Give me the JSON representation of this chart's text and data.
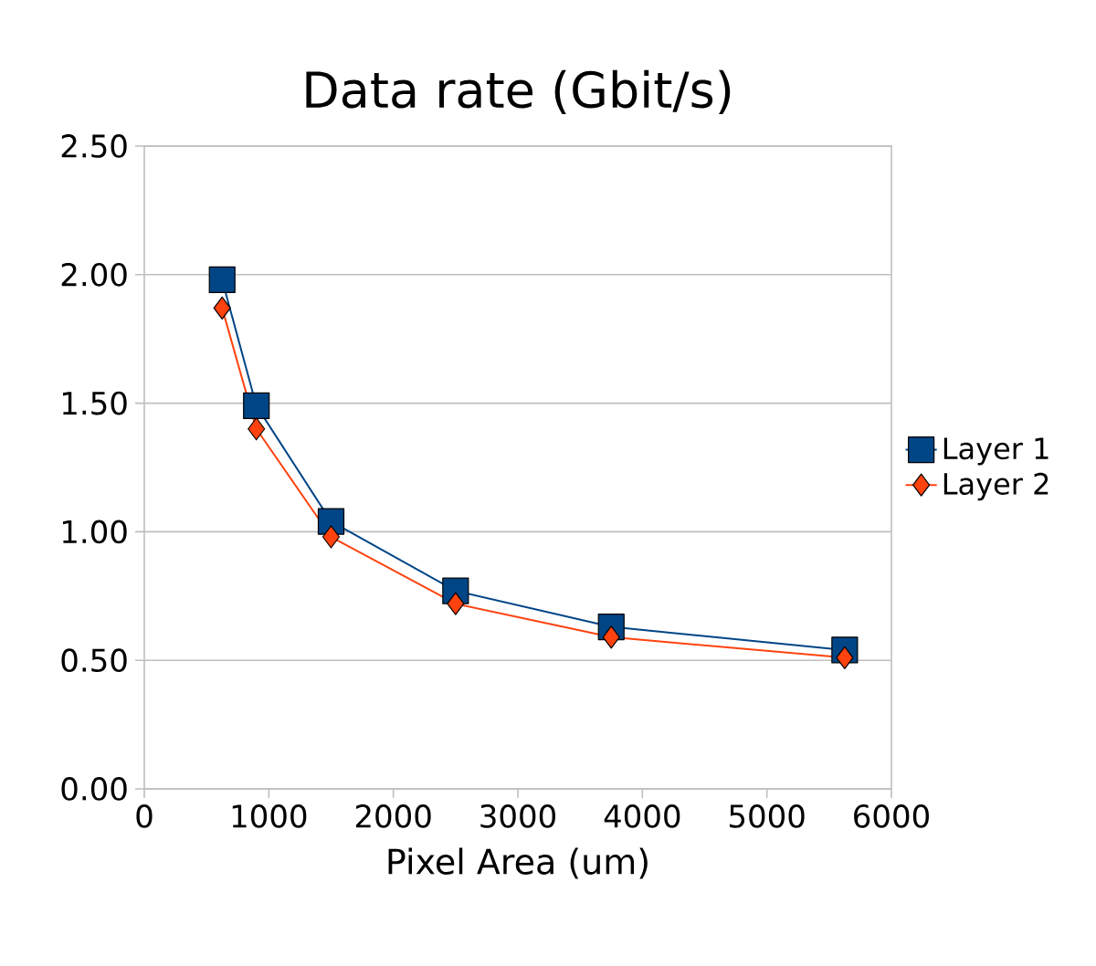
{
  "chart_data": {
    "type": "line",
    "title": "Data rate (Gbit/s)",
    "xlabel": "Pixel Area (um)",
    "series": [
      {
        "name": "Layer 1",
        "color": "#004586",
        "marker": "square",
        "x": [
          625,
          900,
          1500,
          2500,
          3750,
          5625
        ],
        "values": [
          1.98,
          1.49,
          1.04,
          0.77,
          0.63,
          0.54
        ]
      },
      {
        "name": "Layer 2",
        "color": "#ff420e",
        "marker": "diamond",
        "x": [
          625,
          900,
          1500,
          2500,
          3750,
          5625
        ],
        "values": [
          1.87,
          1.4,
          0.98,
          0.72,
          0.59,
          0.51
        ]
      }
    ],
    "xlim": [
      0,
      6000
    ],
    "xticks": [
      0,
      1000,
      2000,
      3000,
      4000,
      5000,
      6000
    ],
    "ylim": [
      0,
      2.5
    ],
    "yticks": [
      {
        "value": 0,
        "label": "0.00"
      },
      {
        "value": 0.5,
        "label": "0.50"
      },
      {
        "value": 1,
        "label": "1.00"
      },
      {
        "value": 1.5,
        "label": "1.50"
      },
      {
        "value": 2,
        "label": "2.00"
      },
      {
        "value": 2.5,
        "label": "2.50"
      }
    ],
    "grid": "y",
    "legend": "right",
    "line_style": "solid"
  }
}
